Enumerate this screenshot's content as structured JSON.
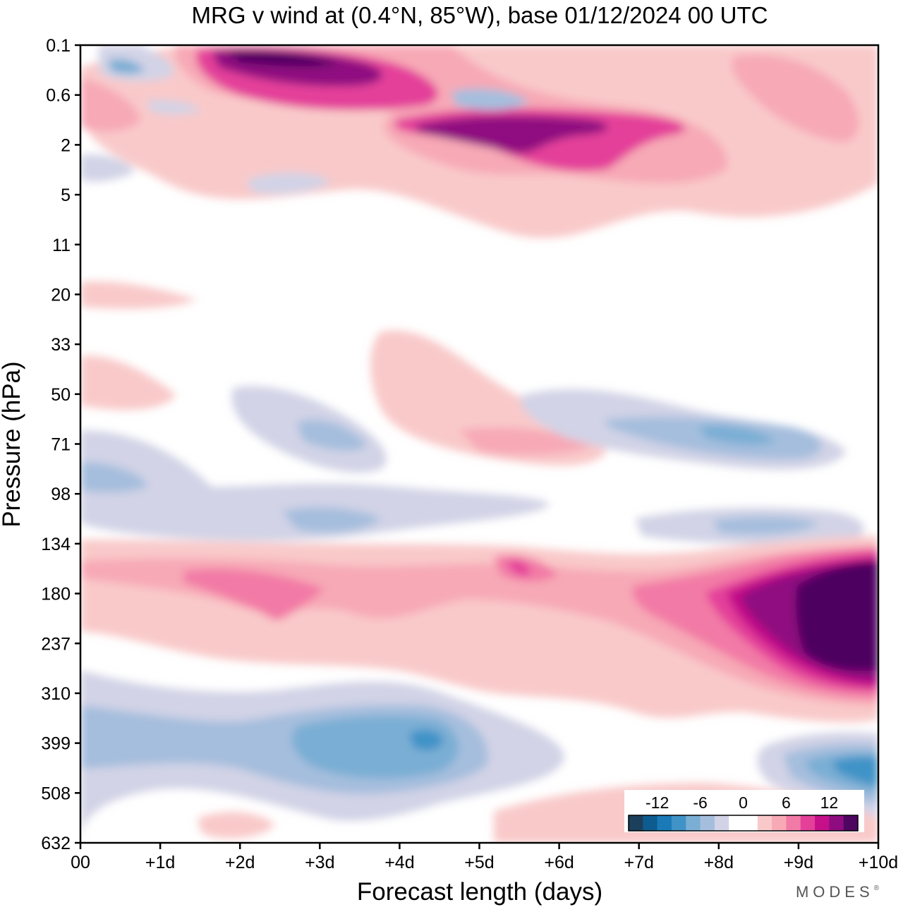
{
  "chart_data": {
    "type": "heatmap",
    "title": "MRG v wind at (0.4°N, 85°W),  base 01/12/2024  00 UTC",
    "xlabel": "Forecast length (days)",
    "ylabel": "Pressure (hPa)",
    "x_ticks": [
      "00",
      "+1d",
      "+2d",
      "+3d",
      "+4d",
      "+5d",
      "+6d",
      "+7d",
      "+8d",
      "+9d",
      "+10d"
    ],
    "y_ticks": [
      "0.1",
      "0.6",
      "2",
      "5",
      "11",
      "20",
      "33",
      "50",
      "71",
      "98",
      "134",
      "180",
      "237",
      "310",
      "399",
      "508",
      "632"
    ],
    "xlim": [
      0,
      10
    ],
    "colorbar": {
      "tick_labels": [
        "-12",
        "-6",
        "0",
        "6",
        "12"
      ],
      "colors": [
        "#1c3f5c",
        "#0e5c8f",
        "#1a7ab8",
        "#3f93c7",
        "#7aaed4",
        "#a5bedd",
        "#d2d3e6",
        "#ffffff",
        "#ffffff",
        "#f9c9c9",
        "#f7a9b6",
        "#f27aa6",
        "#e4409a",
        "#c5108a",
        "#8f0c80",
        "#4e0660"
      ]
    },
    "features": [
      {
        "sign": "positive",
        "level": 8,
        "t": [
          8.6,
          10
        ],
        "p": [
          150,
          290
        ]
      },
      {
        "sign": "positive",
        "level": 3,
        "t": [
          1.3,
          2.6
        ],
        "p": [
          155,
          215
        ]
      },
      {
        "sign": "positive",
        "level": 7,
        "t": [
          1.6,
          4.3
        ],
        "p": [
          0.1,
          0.9
        ]
      },
      {
        "sign": "positive",
        "level": 7,
        "t": [
          4.1,
          7.8
        ],
        "p": [
          1,
          3.5
        ]
      },
      {
        "sign": "negative",
        "level": 4,
        "t": [
          2.7,
          4.7
        ],
        "p": [
          360,
          450
        ]
      },
      {
        "sign": "negative",
        "level": 5,
        "t": [
          9.1,
          10
        ],
        "p": [
          430,
          560
        ]
      },
      {
        "sign": "negative",
        "level": 3,
        "t": [
          7.6,
          9.6
        ],
        "p": [
          60,
          80
        ]
      }
    ]
  },
  "brand": "MODES",
  "brand_mark": "®"
}
